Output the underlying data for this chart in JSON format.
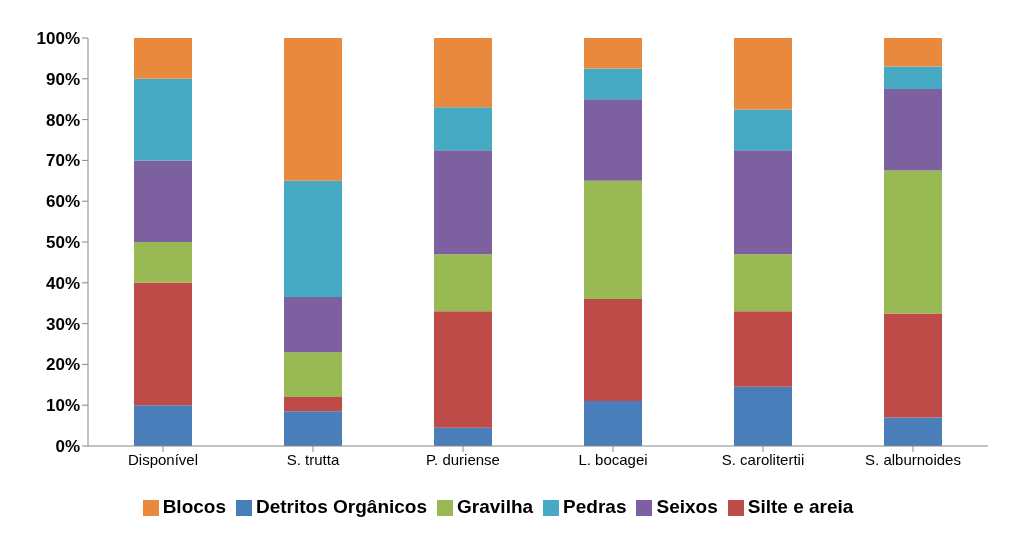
{
  "chart_data": {
    "type": "bar",
    "stacked": true,
    "categories": [
      "Disponível",
      "S. trutta",
      "P. duriense",
      "L. bocagei",
      "S. carolitertii",
      "S. alburnoides"
    ],
    "ylim": [
      0,
      100
    ],
    "yticks": [
      {
        "value": 0,
        "label": "0%"
      },
      {
        "value": 10,
        "label": "10%"
      },
      {
        "value": 20,
        "label": "20%"
      },
      {
        "value": 30,
        "label": "30%"
      },
      {
        "value": 40,
        "label": "40%"
      },
      {
        "value": 50,
        "label": "50%"
      },
      {
        "value": 60,
        "label": "60%"
      },
      {
        "value": 70,
        "label": "70%"
      },
      {
        "value": 80,
        "label": "80%"
      },
      {
        "value": 90,
        "label": "90%"
      },
      {
        "value": 100,
        "label": "100%"
      }
    ],
    "grid": false,
    "legend": "bottom",
    "series": [
      {
        "name": "Detritos Orgânicos",
        "color": "#4a7ebb",
        "values": [
          10,
          8.5,
          4.5,
          11,
          14.5,
          7
        ]
      },
      {
        "name": "Silte e areia",
        "color": "#be4b48",
        "values": [
          30,
          3.5,
          28.5,
          25,
          18.5,
          25.5
        ]
      },
      {
        "name": "Gravilha",
        "color": "#98b954",
        "values": [
          10,
          11,
          14,
          29,
          14,
          35
        ]
      },
      {
        "name": "Seixos",
        "color": "#7d60a0",
        "values": [
          20,
          13.5,
          25.5,
          20,
          25.5,
          20
        ]
      },
      {
        "name": "Pedras",
        "color": "#46aac5",
        "values": [
          20,
          28.5,
          10.5,
          7.5,
          10,
          5.5
        ]
      },
      {
        "name": "Blocos",
        "color": "#e8893e",
        "values": [
          10,
          35,
          17,
          7.5,
          17.5,
          7
        ]
      }
    ]
  }
}
